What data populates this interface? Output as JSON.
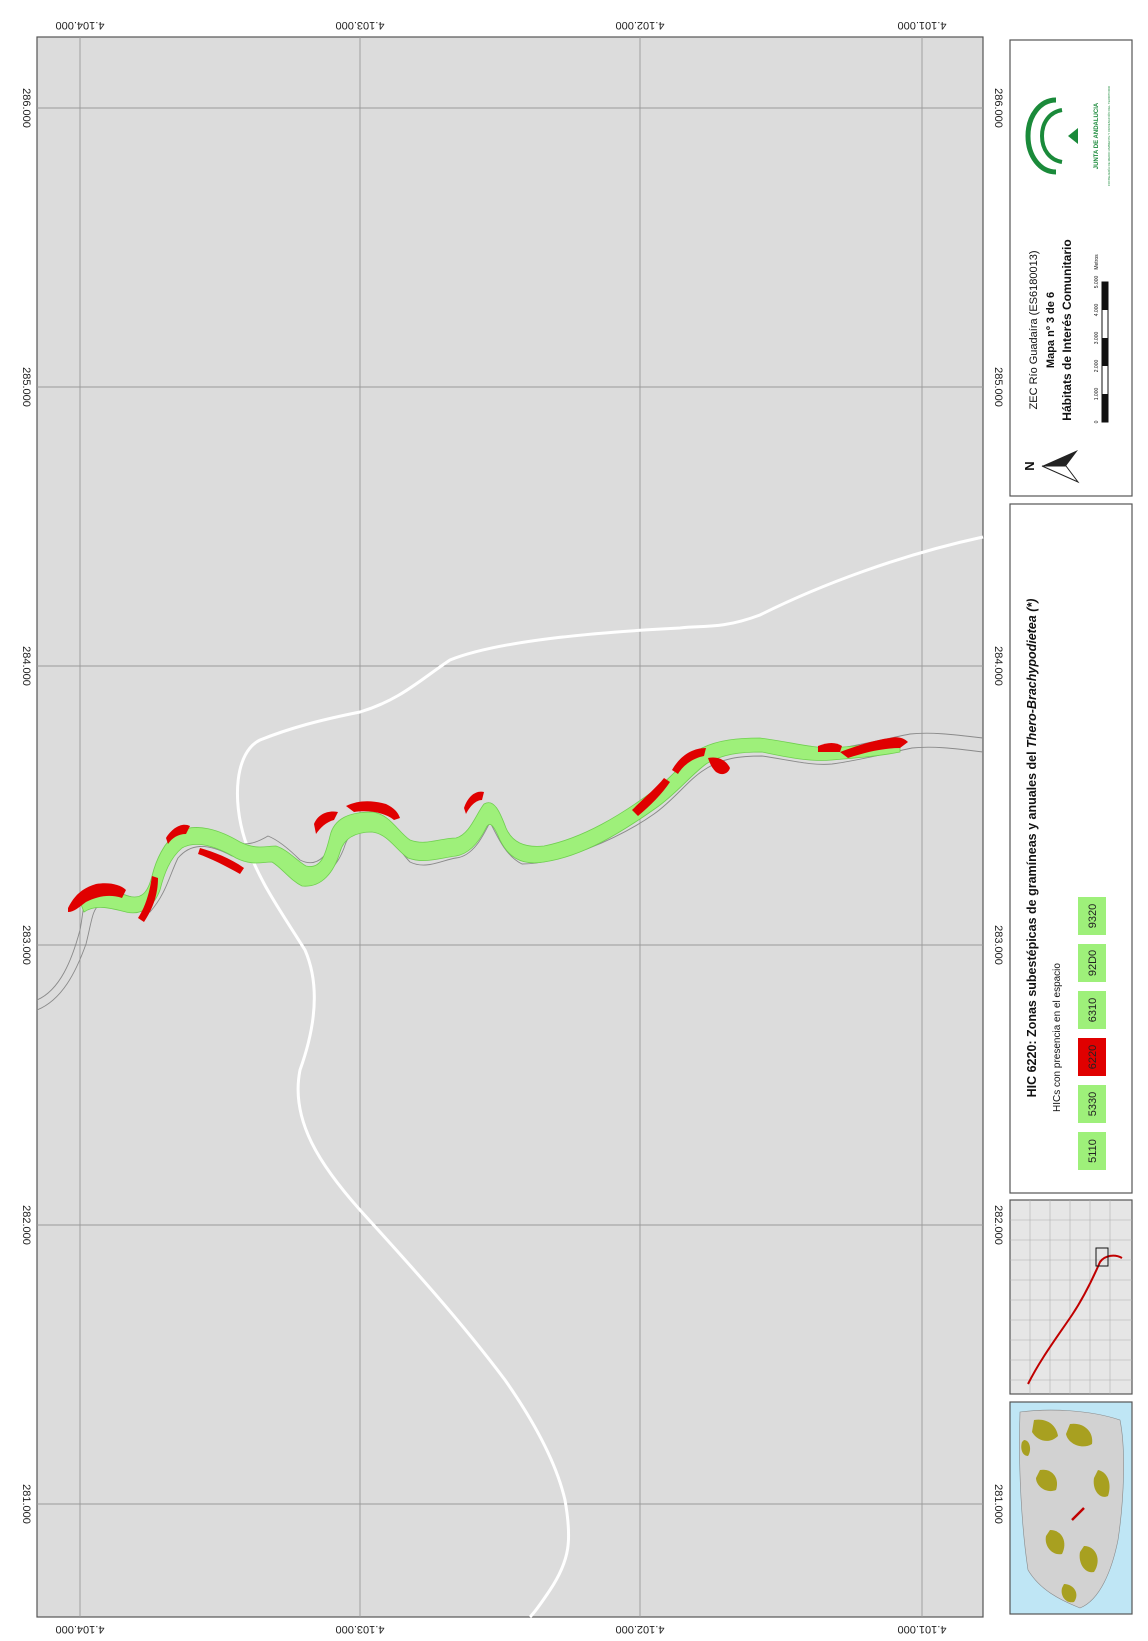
{
  "map": {
    "coords": {
      "northing_labels": [
        "4.104.000",
        "4.103.000",
        "4.102.000",
        "4.101.000"
      ],
      "easting_labels": [
        "281.000",
        "282.000",
        "283.000",
        "284.000",
        "285.000",
        "286.000"
      ]
    },
    "colors": {
      "background": "#dcdcdc",
      "habitat_red": "#e00000",
      "habitat_green": "#9ef07a",
      "road": "#ffffff",
      "grid": "#9a9a9a"
    }
  },
  "legend": {
    "title_prefix": "HIC 6220: Zonas subestépicas de gramíneas y anuales del ",
    "title_italic": "Thero-Brachypodietea",
    "title_suffix": " (*)",
    "subtitle": "HICs con presencia en el espacio",
    "items": [
      {
        "code": "5110",
        "color": "#9ef07a"
      },
      {
        "code": "5330",
        "color": "#9ef07a"
      },
      {
        "code": "6220",
        "color": "#e00000"
      },
      {
        "code": "6310",
        "color": "#9ef07a"
      },
      {
        "code": "92D0",
        "color": "#9ef07a"
      },
      {
        "code": "9320",
        "color": "#9ef07a"
      }
    ]
  },
  "title_block": {
    "site": "ZEC Río Guadaíra (ES6180013)",
    "map_number": "Mapa nº 3 de 6",
    "theme": "Hábitats de Interés Comunitario",
    "north_label": "N",
    "scale_labels": [
      "0",
      "1.000",
      "2.000",
      "3.000",
      "4.000",
      "5.000"
    ],
    "scale_unit": "Metros",
    "logo_text": "JUNTA DE ANDALUCIA",
    "logo_subtext": "CONSEJERÍA DE MEDIO AMBIENTE Y ORDENACIÓN DEL TERRITORIO"
  }
}
